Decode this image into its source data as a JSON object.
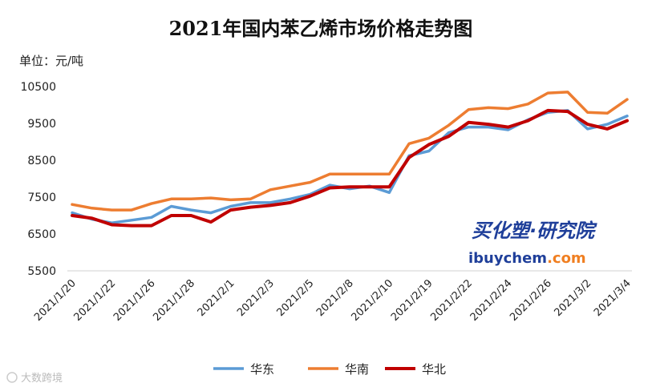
{
  "chart_data": {
    "type": "line",
    "title": "2021年国内苯乙烯市场价格走势图",
    "unit_label": "单位：元/吨",
    "ylim": [
      5500,
      10500
    ],
    "yticks": [
      5500,
      6500,
      7500,
      8500,
      9500,
      10500
    ],
    "grid": "none",
    "legend_position": "bottom",
    "x": [
      "2021/1/20",
      "2021/1/21",
      "2021/1/22",
      "2021/1/25",
      "2021/1/26",
      "2021/1/27",
      "2021/1/28",
      "2021/1/29",
      "2021/2/1",
      "2021/2/2",
      "2021/2/3",
      "2021/2/4",
      "2021/2/5",
      "2021/2/7",
      "2021/2/8",
      "2021/2/9",
      "2021/2/10",
      "2021/2/18",
      "2021/2/19",
      "2021/2/20",
      "2021/2/22",
      "2021/2/23",
      "2021/2/24",
      "2021/2/25",
      "2021/2/26",
      "2021/3/1",
      "2021/3/2",
      "2021/3/3",
      "2021/3/4"
    ],
    "xtick_labels": [
      "2021/1/20",
      "",
      "2021/1/22",
      "",
      "2021/1/26",
      "",
      "2021/1/28",
      "",
      "2021/2/1",
      "",
      "2021/2/3",
      "",
      "2021/2/5",
      "",
      "2021/2/8",
      "",
      "2021/2/10",
      "",
      "2021/2/19",
      "",
      "2021/2/22",
      "",
      "2021/2/24",
      "",
      "2021/2/26",
      "",
      "2021/3/2",
      "",
      "2021/3/4"
    ],
    "series": [
      {
        "name": "华东",
        "color": "#5b9bd5",
        "values": [
          7075,
          6900,
          6800,
          6875,
          6950,
          7250,
          7150,
          7075,
          7250,
          7350,
          7350,
          7450,
          7575,
          7825,
          7725,
          7800,
          7625,
          8625,
          8750,
          9250,
          9400,
          9400,
          9325,
          9600,
          9800,
          9850,
          9350,
          9475,
          9700
        ]
      },
      {
        "name": "华南",
        "color": "#ed7d31",
        "values": [
          7300,
          7200,
          7150,
          7150,
          7325,
          7450,
          7450,
          7475,
          7425,
          7450,
          7700,
          7800,
          7900,
          8125,
          8125,
          8125,
          8125,
          8950,
          9100,
          9450,
          9875,
          9925,
          9900,
          10025,
          10325,
          10350,
          9800,
          9775,
          10150
        ]
      },
      {
        "name": "华北",
        "color": "#c00000",
        "values": [
          7000,
          6925,
          6750,
          6725,
          6725,
          7000,
          7000,
          6825,
          7150,
          7225,
          7275,
          7350,
          7525,
          7750,
          7775,
          7775,
          7775,
          8575,
          8925,
          9150,
          9525,
          9475,
          9400,
          9575,
          9850,
          9825,
          9475,
          9350,
          9575
        ]
      }
    ]
  },
  "watermark": {
    "text_cn": "买化塑·研究院",
    "text_en": "ibuychem",
    "text_domain": ".com"
  },
  "corner_mark": "大数跨境"
}
